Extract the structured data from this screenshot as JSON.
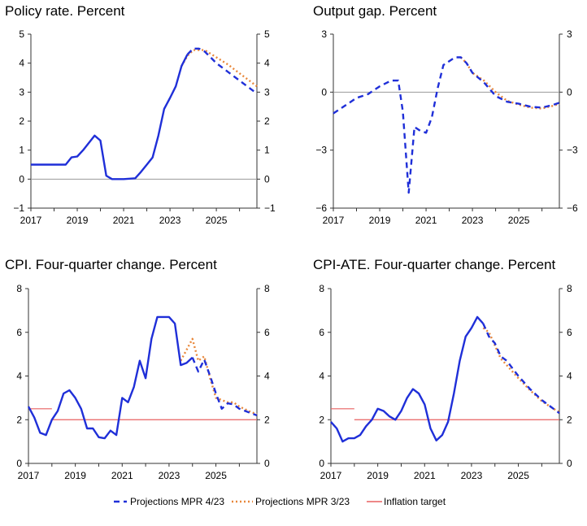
{
  "colors": {
    "mpr423": "#1f2fd8",
    "mpr323": "#e8873a",
    "target": "#e86060",
    "axis": "#333333",
    "zero": "#999999"
  },
  "legend": {
    "items": [
      {
        "label": "Projections MPR 4/23",
        "style": "dash",
        "color": "#1f2fd8"
      },
      {
        "label": "Projections MPR 3/23",
        "style": "dot",
        "color": "#e8873a"
      },
      {
        "label": "Inflation target",
        "style": "solid",
        "color": "#e86060"
      }
    ]
  },
  "chart_data": [
    {
      "type": "line",
      "title": "Policy rate. Percent",
      "xlim": [
        2017,
        2026.75
      ],
      "ylim": [
        -1,
        5
      ],
      "xticks": [
        "2017",
        "2019",
        "2021",
        "2023",
        "2025"
      ],
      "yticks": [
        "−1",
        "0",
        "1",
        "2",
        "3",
        "4",
        "5"
      ],
      "yticks_values": [
        -1,
        0,
        1,
        2,
        3,
        4,
        5
      ],
      "xticks_values": [
        2017,
        2019,
        2021,
        2023,
        2025
      ],
      "zero_line": true,
      "series": [
        {
          "name": "",
          "style": "solid",
          "points": [
            [
              2017.0,
              0.5
            ],
            [
              2017.5,
              0.5
            ],
            [
              2018.0,
              0.5
            ],
            [
              2018.5,
              0.5
            ],
            [
              2018.75,
              0.75
            ],
            [
              2019.0,
              0.78
            ],
            [
              2019.25,
              1.0
            ],
            [
              2019.5,
              1.25
            ],
            [
              2019.75,
              1.5
            ],
            [
              2020.0,
              1.33
            ],
            [
              2020.25,
              0.12
            ],
            [
              2020.5,
              0.0
            ],
            [
              2021.0,
              0.0
            ],
            [
              2021.5,
              0.03
            ],
            [
              2021.75,
              0.25
            ],
            [
              2022.0,
              0.5
            ],
            [
              2022.25,
              0.75
            ],
            [
              2022.5,
              1.5
            ],
            [
              2022.75,
              2.42
            ],
            [
              2023.0,
              2.8
            ],
            [
              2023.25,
              3.2
            ],
            [
              2023.5,
              3.9
            ],
            [
              2023.75,
              4.3
            ]
          ]
        },
        {
          "name": "Projections MPR 4/23",
          "style": "dash",
          "points": [
            [
              2023.75,
              4.3
            ],
            [
              2024.0,
              4.5
            ],
            [
              2024.25,
              4.5
            ],
            [
              2024.5,
              4.4
            ],
            [
              2024.75,
              4.2
            ],
            [
              2025.0,
              4.0
            ],
            [
              2025.5,
              3.7
            ],
            [
              2026.0,
              3.4
            ],
            [
              2026.5,
              3.1
            ],
            [
              2026.75,
              2.95
            ]
          ]
        },
        {
          "name": "Projections MPR 3/23",
          "style": "dot",
          "points": [
            [
              2023.5,
              3.9
            ],
            [
              2023.75,
              4.25
            ],
            [
              2024.0,
              4.45
            ],
            [
              2024.5,
              4.45
            ],
            [
              2025.0,
              4.2
            ],
            [
              2025.5,
              3.95
            ],
            [
              2026.0,
              3.65
            ],
            [
              2026.5,
              3.35
            ],
            [
              2026.75,
              3.2
            ]
          ]
        }
      ]
    },
    {
      "type": "line",
      "title": "Output gap. Percent",
      "xlim": [
        2017,
        2026.75
      ],
      "ylim": [
        -6,
        3
      ],
      "xticks": [
        "2017",
        "2019",
        "2021",
        "2023",
        "2025"
      ],
      "yticks": [
        "−6",
        "−3",
        "0",
        "3"
      ],
      "yticks_values": [
        -6,
        -3,
        0,
        3
      ],
      "xticks_values": [
        2017,
        2019,
        2021,
        2023,
        2025
      ],
      "zero_line": true,
      "series": [
        {
          "name": "Projections MPR 4/23",
          "style": "dash",
          "points": [
            [
              2017.0,
              -1.1
            ],
            [
              2017.5,
              -0.7
            ],
            [
              2018.0,
              -0.3
            ],
            [
              2018.5,
              -0.1
            ],
            [
              2019.0,
              0.3
            ],
            [
              2019.5,
              0.6
            ],
            [
              2019.8,
              0.6
            ],
            [
              2020.0,
              -1.0
            ],
            [
              2020.25,
              -5.2
            ],
            [
              2020.5,
              -1.8
            ],
            [
              2020.75,
              -2.0
            ],
            [
              2021.0,
              -2.1
            ],
            [
              2021.25,
              -1.3
            ],
            [
              2021.5,
              0.2
            ],
            [
              2021.75,
              1.4
            ],
            [
              2022.25,
              1.8
            ],
            [
              2022.5,
              1.8
            ],
            [
              2022.75,
              1.5
            ],
            [
              2023.0,
              1.0
            ],
            [
              2023.5,
              0.5
            ],
            [
              2024.0,
              -0.2
            ],
            [
              2024.5,
              -0.5
            ],
            [
              2025.0,
              -0.6
            ],
            [
              2025.5,
              -0.75
            ],
            [
              2026.0,
              -0.8
            ],
            [
              2026.5,
              -0.65
            ],
            [
              2026.75,
              -0.55
            ]
          ]
        },
        {
          "name": "Projections MPR 3/23",
          "style": "dot",
          "points": [
            [
              2022.5,
              1.8
            ],
            [
              2022.75,
              1.5
            ],
            [
              2023.0,
              1.0
            ],
            [
              2023.5,
              0.6
            ],
            [
              2024.0,
              0.0
            ],
            [
              2024.5,
              -0.45
            ],
            [
              2025.0,
              -0.65
            ],
            [
              2025.5,
              -0.8
            ],
            [
              2026.0,
              -0.85
            ],
            [
              2026.5,
              -0.7
            ],
            [
              2026.75,
              -0.6
            ]
          ]
        }
      ]
    },
    {
      "type": "line",
      "title": "CPI. Four-quarter change. Percent",
      "xlim": [
        2017,
        2026.75
      ],
      "ylim": [
        0,
        8
      ],
      "xticks": [
        "2017",
        "2019",
        "2021",
        "2023",
        "2025"
      ],
      "yticks": [
        "0",
        "2",
        "4",
        "6",
        "8"
      ],
      "yticks_values": [
        0,
        2,
        4,
        6,
        8
      ],
      "xticks_values": [
        2017,
        2019,
        2021,
        2023,
        2025
      ],
      "zero_line": false,
      "target": {
        "value": 2.0,
        "pre_value": 2.5,
        "pre_from": 2017.0,
        "pre_to": 2018.0
      },
      "series": [
        {
          "name": "",
          "style": "solid",
          "points": [
            [
              2017.0,
              2.6
            ],
            [
              2017.25,
              2.1
            ],
            [
              2017.5,
              1.4
            ],
            [
              2017.75,
              1.3
            ],
            [
              2018.0,
              2.0
            ],
            [
              2018.25,
              2.4
            ],
            [
              2018.5,
              3.2
            ],
            [
              2018.75,
              3.35
            ],
            [
              2019.0,
              3.0
            ],
            [
              2019.25,
              2.5
            ],
            [
              2019.5,
              1.6
            ],
            [
              2019.75,
              1.6
            ],
            [
              2020.0,
              1.2
            ],
            [
              2020.25,
              1.15
            ],
            [
              2020.5,
              1.5
            ],
            [
              2020.75,
              1.3
            ],
            [
              2021.0,
              3.0
            ],
            [
              2021.25,
              2.8
            ],
            [
              2021.5,
              3.5
            ],
            [
              2021.75,
              4.7
            ],
            [
              2022.0,
              3.9
            ],
            [
              2022.25,
              5.7
            ],
            [
              2022.5,
              6.7
            ],
            [
              2022.75,
              6.7
            ],
            [
              2023.0,
              6.7
            ],
            [
              2023.25,
              6.4
            ],
            [
              2023.5,
              4.5
            ],
            [
              2023.75,
              4.6
            ],
            [
              2024.0,
              4.85
            ]
          ]
        },
        {
          "name": "Projections MPR 4/23",
          "style": "dash",
          "points": [
            [
              2024.0,
              4.85
            ],
            [
              2024.25,
              4.2
            ],
            [
              2024.5,
              4.75
            ],
            [
              2024.75,
              4.0
            ],
            [
              2025.0,
              3.2
            ],
            [
              2025.25,
              2.5
            ],
            [
              2025.5,
              2.75
            ],
            [
              2025.75,
              2.7
            ],
            [
              2026.0,
              2.5
            ],
            [
              2026.5,
              2.3
            ],
            [
              2026.75,
              2.2
            ]
          ]
        },
        {
          "name": "Projections MPR 3/23",
          "style": "dot",
          "points": [
            [
              2023.5,
              4.7
            ],
            [
              2023.75,
              5.2
            ],
            [
              2024.0,
              5.7
            ],
            [
              2024.25,
              4.7
            ],
            [
              2024.5,
              4.9
            ],
            [
              2024.75,
              3.9
            ],
            [
              2025.0,
              3.0
            ],
            [
              2025.25,
              2.9
            ],
            [
              2025.5,
              2.8
            ],
            [
              2025.75,
              2.8
            ],
            [
              2026.0,
              2.6
            ],
            [
              2026.5,
              2.35
            ],
            [
              2026.75,
              2.25
            ]
          ]
        }
      ]
    },
    {
      "type": "line",
      "title": "CPI-ATE. Four-quarter change. Percent",
      "xlim": [
        2017,
        2026.75
      ],
      "ylim": [
        0,
        8
      ],
      "xticks": [
        "2017",
        "2019",
        "2021",
        "2023",
        "2025"
      ],
      "yticks": [
        "0",
        "2",
        "4",
        "6",
        "8"
      ],
      "yticks_values": [
        0,
        2,
        4,
        6,
        8
      ],
      "xticks_values": [
        2017,
        2019,
        2021,
        2023,
        2025
      ],
      "zero_line": false,
      "target": {
        "value": 2.0,
        "pre_value": 2.5,
        "pre_from": 2017.0,
        "pre_to": 2018.0
      },
      "series": [
        {
          "name": "",
          "style": "solid",
          "points": [
            [
              2017.0,
              1.9
            ],
            [
              2017.25,
              1.6
            ],
            [
              2017.5,
              1.0
            ],
            [
              2017.75,
              1.15
            ],
            [
              2018.0,
              1.15
            ],
            [
              2018.25,
              1.3
            ],
            [
              2018.5,
              1.7
            ],
            [
              2018.75,
              2.0
            ],
            [
              2019.0,
              2.5
            ],
            [
              2019.25,
              2.4
            ],
            [
              2019.5,
              2.15
            ],
            [
              2019.75,
              2.0
            ],
            [
              2020.0,
              2.4
            ],
            [
              2020.25,
              3.0
            ],
            [
              2020.5,
              3.4
            ],
            [
              2020.75,
              3.2
            ],
            [
              2021.0,
              2.7
            ],
            [
              2021.25,
              1.6
            ],
            [
              2021.5,
              1.05
            ],
            [
              2021.75,
              1.3
            ],
            [
              2022.0,
              1.9
            ],
            [
              2022.25,
              3.2
            ],
            [
              2022.5,
              4.7
            ],
            [
              2022.75,
              5.8
            ],
            [
              2023.0,
              6.2
            ],
            [
              2023.25,
              6.7
            ],
            [
              2023.5,
              6.4
            ]
          ]
        },
        {
          "name": "Projections MPR 4/23",
          "style": "dash",
          "points": [
            [
              2023.5,
              6.4
            ],
            [
              2023.75,
              5.8
            ],
            [
              2024.0,
              5.5
            ],
            [
              2024.25,
              4.9
            ],
            [
              2024.5,
              4.7
            ],
            [
              2025.0,
              4.0
            ],
            [
              2025.5,
              3.4
            ],
            [
              2026.0,
              2.9
            ],
            [
              2026.5,
              2.5
            ],
            [
              2026.75,
              2.3
            ]
          ]
        },
        {
          "name": "Projections MPR 3/23",
          "style": "dot",
          "points": [
            [
              2023.5,
              6.2
            ],
            [
              2023.75,
              6.0
            ],
            [
              2024.0,
              5.4
            ],
            [
              2024.25,
              4.8
            ],
            [
              2024.5,
              4.5
            ],
            [
              2025.0,
              3.9
            ],
            [
              2025.5,
              3.35
            ],
            [
              2026.0,
              2.85
            ],
            [
              2026.5,
              2.5
            ],
            [
              2026.75,
              2.35
            ]
          ]
        }
      ]
    }
  ]
}
